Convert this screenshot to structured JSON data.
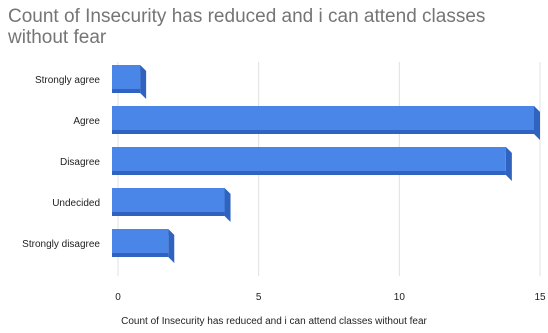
{
  "chart_data": {
    "type": "bar",
    "orientation": "horizontal",
    "title": "Count of Insecurity has reduced and i can attend classes without fear",
    "xlabel": "Count of Insecurity has reduced and i can attend classes without fear",
    "ylabel": "",
    "categories": [
      "Strongly agree",
      "Agree",
      "Disagree",
      "Undecided",
      "Strongly disagree"
    ],
    "values": [
      1,
      15,
      14,
      4,
      2
    ],
    "xlim": [
      0,
      15
    ],
    "xticks": [
      0,
      5,
      10,
      15
    ],
    "xtick_labels": [
      "0",
      "5",
      "10",
      "15"
    ],
    "grid": true,
    "legend": "none",
    "style": "3d",
    "colors": {
      "bar_front": "#4a86e8",
      "bar_top": "#7ba7f0",
      "bar_side": "#2f63bf",
      "grid": "#e0e0e0",
      "title": "#757575",
      "text": "#222222"
    }
  }
}
